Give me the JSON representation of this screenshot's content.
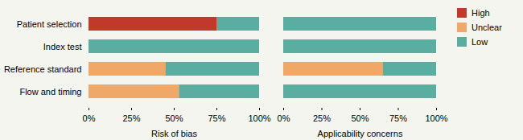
{
  "chart_data": [
    {
      "type": "bar",
      "orientation": "horizontal",
      "stacked": true,
      "categories": [
        "Flow and timing",
        "Reference standard",
        "Index test",
        "Patient selection"
      ],
      "series": [
        {
          "name": "High",
          "color": "#c0392b",
          "values": [
            0,
            0,
            0,
            75
          ]
        },
        {
          "name": "Unclear",
          "color": "#f0a868",
          "values": [
            53,
            45,
            0,
            0
          ]
        },
        {
          "name": "Low",
          "color": "#5aada0",
          "values": [
            47,
            55,
            100,
            25
          ]
        }
      ],
      "xlabel": "Risk of bias",
      "xlim": [
        0,
        100
      ],
      "xticks": [
        {
          "value": 0,
          "label": "0%"
        },
        {
          "value": 25,
          "label": "25%"
        },
        {
          "value": 50,
          "label": "50%"
        },
        {
          "value": 75,
          "label": "75%"
        },
        {
          "value": 100,
          "label": "100%"
        }
      ]
    },
    {
      "type": "bar",
      "orientation": "horizontal",
      "stacked": true,
      "categories": [
        "Flow and timing",
        "Reference standard",
        "Index test",
        "Patient selection"
      ],
      "series": [
        {
          "name": "High",
          "color": "#c0392b",
          "values": [
            0,
            0,
            0,
            0
          ]
        },
        {
          "name": "Unclear",
          "color": "#f0a868",
          "values": [
            0,
            65,
            0,
            0
          ]
        },
        {
          "name": "Low",
          "color": "#5aada0",
          "values": [
            100,
            35,
            100,
            100
          ]
        }
      ],
      "xlabel": "Applicability concerns",
      "xlim": [
        0,
        100
      ],
      "xticks": [
        {
          "value": 0,
          "label": "0%"
        },
        {
          "value": 25,
          "label": "25%"
        },
        {
          "value": 50,
          "label": "50%"
        },
        {
          "value": 75,
          "label": "75%"
        },
        {
          "value": 100,
          "label": "100%"
        }
      ],
      "tick_labels": "x",
      "legend": "right"
    }
  ]
}
